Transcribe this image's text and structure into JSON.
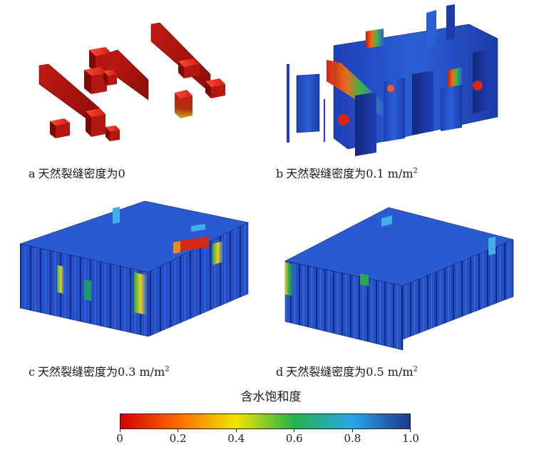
{
  "panels": [
    {
      "letter": "a",
      "caption": "天然裂缝密度为0",
      "unit": "",
      "sup": ""
    },
    {
      "letter": "b",
      "caption": "天然裂缝密度为0.1",
      "unit": " m/m",
      "sup": "2"
    },
    {
      "letter": "c",
      "caption": "天然裂缝密度为0.3",
      "unit": " m/m",
      "sup": "2"
    },
    {
      "letter": "d",
      "caption": "天然裂缝密度为0.5",
      "unit": " m/m",
      "sup": "2"
    }
  ],
  "legend": {
    "title": "含水饱和度",
    "tick_labels": [
      "0",
      "0.2",
      "0.4",
      "0.6",
      "0.8",
      "1.0"
    ],
    "colors": [
      "#d40000",
      "#ff6a00",
      "#f2e600",
      "#22b24c",
      "#29a6e8",
      "#1b3a8c"
    ]
  }
}
